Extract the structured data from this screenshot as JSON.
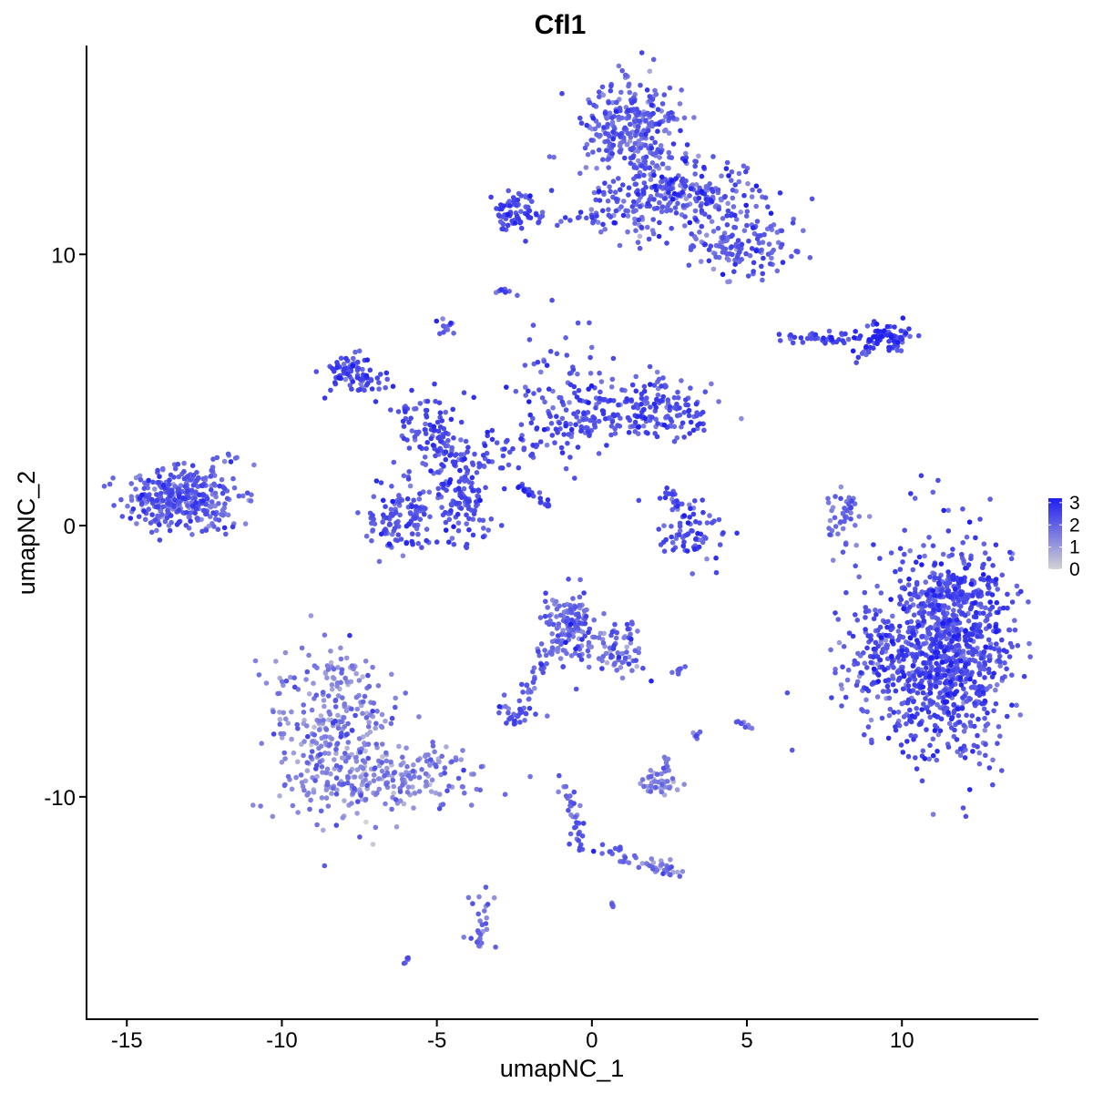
{
  "chart_data": {
    "type": "scatter",
    "title": "Cfl1",
    "xlabel": "umapNC_1",
    "ylabel": "umapNC_2",
    "xlim": [
      -16.3,
      14.4
    ],
    "ylim": [
      -18.2,
      17.7
    ],
    "xticks": [
      -15,
      -10,
      -5,
      0,
      5,
      10
    ],
    "xtick_labels": [
      "-15",
      "-10",
      "-5",
      "0",
      "5",
      "10"
    ],
    "yticks": [
      -10,
      0,
      10
    ],
    "ytick_labels": [
      "-10",
      "0",
      "10"
    ],
    "grid": false,
    "legend": {
      "type": "colorbar",
      "placement": "right",
      "range": [
        0,
        3.2
      ],
      "ticks": [
        0,
        1,
        2,
        3
      ],
      "tick_labels": [
        "0",
        "1",
        "2",
        "3"
      ],
      "color_low": "#d3d3d3",
      "color_high": "#1e1ef0"
    },
    "clusters": [
      {
        "cx": 11.5,
        "cy": -4.6,
        "sx": 1.0,
        "sy": 2.0,
        "n": 950,
        "mean": 2.3,
        "spread": 0.45
      },
      {
        "cx": 9.2,
        "cy": -5.2,
        "sx": 0.7,
        "sy": 1.1,
        "n": 140,
        "mean": 2.2,
        "spread": 0.45
      },
      {
        "cx": 11.6,
        "cy": -2.4,
        "sx": 0.9,
        "sy": 0.4,
        "n": 80,
        "mean": 2.2,
        "spread": 0.45
      },
      {
        "cx": 1.2,
        "cy": 14.6,
        "sx": 0.8,
        "sy": 1.0,
        "n": 300,
        "mean": 1.9,
        "spread": 0.5
      },
      {
        "cx": 3.0,
        "cy": 12.3,
        "sx": 1.3,
        "sy": 0.6,
        "n": 230,
        "mean": 2.2,
        "spread": 0.5
      },
      {
        "cx": 5.0,
        "cy": 10.3,
        "sx": 0.8,
        "sy": 0.6,
        "n": 130,
        "mean": 2.0,
        "spread": 0.5
      },
      {
        "cx": 1.4,
        "cy": 11.5,
        "sx": 0.8,
        "sy": 0.5,
        "n": 60,
        "mean": 2.0,
        "spread": 0.5
      },
      {
        "cx": -2.5,
        "cy": 11.6,
        "sx": 0.35,
        "sy": 0.4,
        "n": 60,
        "mean": 2.4,
        "spread": 0.4
      },
      {
        "cx": 9.4,
        "cy": 6.9,
        "sx": 0.5,
        "sy": 0.25,
        "n": 70,
        "mean": 2.6,
        "spread": 0.4
      },
      {
        "cx": 7.3,
        "cy": 6.9,
        "sx": 0.6,
        "sy": 0.12,
        "n": 40,
        "mean": 2.4,
        "spread": 0.4
      },
      {
        "cx": -13.2,
        "cy": 1.0,
        "sx": 0.9,
        "sy": 0.55,
        "n": 330,
        "mean": 2.0,
        "spread": 0.45
      },
      {
        "cx": -7.8,
        "cy": 5.7,
        "sx": 0.4,
        "sy": 0.35,
        "n": 70,
        "mean": 2.4,
        "spread": 0.4
      },
      {
        "cx": -6.2,
        "cy": 0.3,
        "sx": 0.5,
        "sy": 0.6,
        "n": 120,
        "mean": 2.3,
        "spread": 0.4
      },
      {
        "cx": -4.2,
        "cy": 0.8,
        "sx": 0.5,
        "sy": 0.7,
        "n": 110,
        "mean": 2.3,
        "spread": 0.4
      },
      {
        "cx": -5.0,
        "cy": 3.2,
        "sx": 0.7,
        "sy": 0.8,
        "n": 80,
        "mean": 2.3,
        "spread": 0.4
      },
      {
        "cx": -1.0,
        "cy": 4.6,
        "sx": 0.8,
        "sy": 1.2,
        "n": 110,
        "mean": 2.3,
        "spread": 0.45
      },
      {
        "cx": 2.0,
        "cy": 4.4,
        "sx": 0.9,
        "sy": 0.6,
        "n": 120,
        "mean": 2.3,
        "spread": 0.45
      },
      {
        "cx": 3.3,
        "cy": -0.3,
        "sx": 0.6,
        "sy": 0.5,
        "n": 70,
        "mean": 2.2,
        "spread": 0.45
      },
      {
        "cx": -0.7,
        "cy": -3.7,
        "sx": 0.4,
        "sy": 0.6,
        "n": 130,
        "mean": 1.8,
        "spread": 0.5
      },
      {
        "cx": 0.8,
        "cy": -4.6,
        "sx": 0.5,
        "sy": 0.6,
        "n": 70,
        "mean": 1.8,
        "spread": 0.5
      },
      {
        "cx": -8.3,
        "cy": -7.8,
        "sx": 1.0,
        "sy": 1.6,
        "n": 330,
        "mean": 1.4,
        "spread": 0.55
      },
      {
        "cx": -6.0,
        "cy": -9.4,
        "sx": 1.4,
        "sy": 0.55,
        "n": 160,
        "mean": 1.4,
        "spread": 0.5
      },
      {
        "cx": -2.5,
        "cy": -6.9,
        "sx": 0.3,
        "sy": 0.2,
        "n": 30,
        "mean": 2.0,
        "spread": 0.4
      },
      {
        "cx": 2.2,
        "cy": -9.5,
        "sx": 0.4,
        "sy": 0.22,
        "n": 40,
        "mean": 1.2,
        "spread": 0.5
      },
      {
        "cx": 2.2,
        "cy": -12.6,
        "sx": 0.3,
        "sy": 0.2,
        "n": 25,
        "mean": 1.4,
        "spread": 0.5
      },
      {
        "cx": -3.6,
        "cy": -14.7,
        "sx": 0.2,
        "sy": 0.6,
        "n": 30,
        "mean": 1.5,
        "spread": 0.5
      },
      {
        "cx": 8.0,
        "cy": 0.2,
        "sx": 0.3,
        "sy": 0.8,
        "n": 30,
        "mean": 1.7,
        "spread": 0.5
      },
      {
        "cx": -4.7,
        "cy": 7.3,
        "sx": 0.15,
        "sy": 0.2,
        "n": 12,
        "mean": 2.0,
        "spread": 0.5
      },
      {
        "cx": -2.8,
        "cy": 8.6,
        "sx": 0.15,
        "sy": 0.12,
        "n": 8,
        "mean": 2.0,
        "spread": 0.5
      }
    ],
    "trails": [
      {
        "path": [
          [
            -3.2,
            11.5
          ],
          [
            0.5,
            11.2
          ]
        ],
        "n": 30,
        "jitter": 0.15,
        "mean": 2.2
      },
      {
        "path": [
          [
            -7.2,
            5.4
          ],
          [
            -5.0,
            3.5
          ],
          [
            -4.2,
            1.6
          ]
        ],
        "n": 60,
        "jitter": 0.35,
        "mean": 2.4
      },
      {
        "path": [
          [
            -4.2,
            2.0
          ],
          [
            -2.5,
            3.0
          ],
          [
            -1.0,
            3.5
          ],
          [
            1.5,
            4.0
          ],
          [
            3.5,
            4.0
          ]
        ],
        "n": 120,
        "jitter": 0.35,
        "mean": 2.3
      },
      {
        "path": [
          [
            -2.4,
            1.5
          ],
          [
            -1.4,
            0.7
          ]
        ],
        "n": 25,
        "jitter": 0.05,
        "mean": 2.5
      },
      {
        "path": [
          [
            -2.4,
            -6.6
          ],
          [
            -1.8,
            -5.6
          ],
          [
            -1.2,
            -4.4
          ]
        ],
        "n": 40,
        "jitter": 0.15,
        "mean": 2.0
      },
      {
        "path": [
          [
            -0.9,
            -9.3
          ],
          [
            -0.6,
            -10.7
          ],
          [
            -0.4,
            -11.9
          ],
          [
            0.5,
            -12.1
          ]
        ],
        "n": 40,
        "jitter": 0.12,
        "mean": 1.9
      },
      {
        "path": [
          [
            0.8,
            -12.2
          ],
          [
            2.2,
            -12.6
          ]
        ],
        "n": 15,
        "jitter": 0.1,
        "mean": 1.6
      },
      {
        "path": [
          [
            2.4,
            -8.5
          ],
          [
            2.5,
            -9.0
          ]
        ],
        "n": 10,
        "jitter": 0.08,
        "mean": 1.8
      },
      {
        "path": [
          [
            8.5,
            1.2
          ],
          [
            7.7,
            -0.5
          ]
        ],
        "n": 20,
        "jitter": 0.1,
        "mean": 1.8
      },
      {
        "path": [
          [
            2.4,
            1.3
          ],
          [
            2.9,
            0.5
          ],
          [
            3.3,
            0.2
          ]
        ],
        "n": 20,
        "jitter": 0.15,
        "mean": 2.3
      },
      {
        "path": [
          [
            -12.5,
            1.8
          ],
          [
            -11.5,
            2.6
          ]
        ],
        "n": 15,
        "jitter": 0.15,
        "mean": 2.0
      },
      {
        "path": [
          [
            -8.5,
            -5.6
          ],
          [
            -7.5,
            -5.0
          ]
        ],
        "n": 15,
        "jitter": 0.2,
        "mean": 1.3
      },
      {
        "path": [
          [
            2.6,
            -5.5
          ],
          [
            3.0,
            -5.2
          ]
        ],
        "n": 8,
        "jitter": 0.05,
        "mean": 2.0
      },
      {
        "path": [
          [
            4.8,
            -7.2
          ],
          [
            5.2,
            -7.6
          ]
        ],
        "n": 10,
        "jitter": 0.08,
        "mean": 1.9
      },
      {
        "path": [
          [
            3.3,
            -7.9
          ],
          [
            3.5,
            -7.4
          ]
        ],
        "n": 6,
        "jitter": 0.08,
        "mean": 1.8
      },
      {
        "path": [
          [
            8.6,
            6.0
          ],
          [
            8.9,
            6.5
          ]
        ],
        "n": 8,
        "jitter": 0.08,
        "mean": 2.2
      },
      {
        "path": [
          [
            3.2,
            10.2
          ],
          [
            3.6,
            10.4
          ]
        ],
        "n": 8,
        "jitter": 0.06,
        "mean": 2.3
      },
      {
        "path": [
          [
            -6.1,
            -16.2
          ],
          [
            -5.9,
            -16.0
          ]
        ],
        "n": 5,
        "jitter": 0.04,
        "mean": 2.3
      },
      {
        "path": [
          [
            0.5,
            -13.9
          ],
          [
            0.7,
            -14.0
          ]
        ],
        "n": 4,
        "jitter": 0.04,
        "mean": 2.0
      },
      {
        "path": [
          [
            0.6,
            -12.0
          ],
          [
            1.0,
            -11.9
          ]
        ],
        "n": 6,
        "jitter": 0.05,
        "mean": 2.2
      }
    ]
  }
}
